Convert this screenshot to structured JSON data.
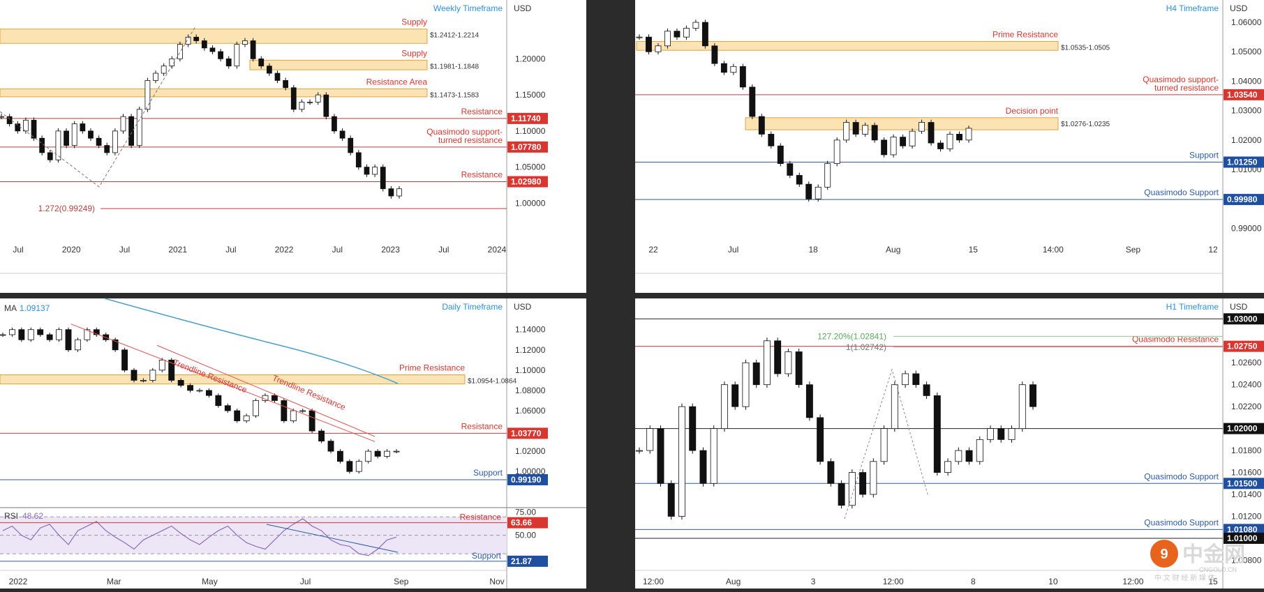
{
  "watermark": {
    "logo_text": "中金网",
    "sub_text": "CNGOLD.CN",
    "tagline": "中 文 财 经 新 媒 体"
  },
  "chart_data": [
    {
      "id": "weekly",
      "type": "candlestick",
      "timeframe_label": "Weekly Timeframe",
      "currency": "USD",
      "yticks": [
        "1.20000",
        "1.15000",
        "1.10000",
        "1.05000",
        "1.00000"
      ],
      "xticks": [
        "Jul",
        "2020",
        "Jul",
        "2021",
        "Jul",
        "2022",
        "Jul",
        "2023",
        "Jul",
        "2024"
      ],
      "ylim": [
        0.955,
        1.266
      ],
      "zones": [
        {
          "label": "Supply",
          "range_label": "$1.2412-1.2214",
          "top": 1.2412,
          "bottom": 1.2214
        },
        {
          "label": "Supply",
          "range_label": "$1.1981-1.1848",
          "top": 1.1981,
          "bottom": 1.1848
        },
        {
          "label": "Resistance Area",
          "range_label": "$1.1473-1.1583",
          "top": 1.1583,
          "bottom": 1.1473
        }
      ],
      "levels": [
        {
          "label": "Resistance",
          "price": 1.1174,
          "badge": "1.11740"
        },
        {
          "label": "Quasimodo support-\nturned resistance",
          "price": 1.0778,
          "badge": "1.07780"
        },
        {
          "label": "Resistance",
          "price": 1.0298,
          "badge": "1.02980"
        }
      ],
      "fib": {
        "label": "1.272(0.99249)",
        "price": 0.99249
      },
      "path": [
        1.12,
        1.11,
        1.1,
        1.115,
        1.09,
        1.07,
        1.06,
        1.1,
        1.08,
        1.11,
        1.1,
        1.09,
        1.08,
        1.07,
        1.1,
        1.12,
        1.08,
        1.13,
        1.17,
        1.18,
        1.19,
        1.2,
        1.22,
        1.23,
        1.225,
        1.215,
        1.21,
        1.2,
        1.19,
        1.22,
        1.225,
        1.2,
        1.19,
        1.18,
        1.17,
        1.16,
        1.13,
        1.14,
        1.14,
        1.15,
        1.12,
        1.1,
        1.09,
        1.07,
        1.05,
        1.04,
        1.05,
        1.02,
        1.01,
        1.02
      ]
    },
    {
      "id": "h4",
      "type": "candlestick",
      "timeframe_label": "H4 Timeframe",
      "currency": "USD",
      "yticks": [
        "1.06000",
        "1.05000",
        "1.04000",
        "1.03000",
        "1.02000",
        "1.01000",
        "1.00000",
        "0.99000"
      ],
      "xticks": [
        "22",
        "Jul",
        "18",
        "Aug",
        "15",
        "14:00",
        "Sep",
        "12"
      ],
      "ylim": [
        0.9875,
        1.0638
      ],
      "zones": [
        {
          "label": "Prime Resistance",
          "range_label": "$1.0535-1.0505",
          "top": 1.0535,
          "bottom": 1.0505
        },
        {
          "label": "Decision point",
          "range_label": "$1.0276-1.0235",
          "top": 1.0276,
          "bottom": 1.0235
        }
      ],
      "levels": [
        {
          "label": "Quasimodo support-\nturned resistance",
          "price": 1.0354,
          "badge": "1.03540"
        },
        {
          "label": "Support",
          "price": 1.0125,
          "badge": "1.01250"
        },
        {
          "label": "Quasimodo Support",
          "price": 0.9998,
          "badge": "0.99980"
        }
      ],
      "path": [
        1.055,
        1.05,
        1.052,
        1.057,
        1.055,
        1.058,
        1.06,
        1.052,
        1.046,
        1.043,
        1.045,
        1.038,
        1.028,
        1.022,
        1.018,
        1.012,
        1.008,
        1.005,
        1.0,
        1.004,
        1.012,
        1.02,
        1.026,
        1.022,
        1.025,
        1.02,
        1.015,
        1.021,
        1.018,
        1.023,
        1.026,
        1.019,
        1.017,
        1.022,
        1.02,
        1.024
      ]
    },
    {
      "id": "daily",
      "type": "candlestick",
      "timeframe_label": "Daily Timeframe",
      "currency": "USD",
      "ma_label": "MA",
      "ma_value": "1.09137",
      "yticks": [
        "1.14000",
        "1.12000",
        "1.10000",
        "1.08000",
        "1.06000",
        "1.04000",
        "1.02000",
        "1.00000"
      ],
      "xticks": [
        "2022",
        "Mar",
        "May",
        "Jul",
        "Sep",
        "Nov"
      ],
      "ylim": [
        0.985,
        1.157
      ],
      "zones": [
        {
          "label": "Prime Resistance",
          "range_label": "$1.0954-1.0864",
          "top": 1.0954,
          "bottom": 1.0864
        }
      ],
      "levels": [
        {
          "label": "Resistance",
          "price": 1.0377,
          "badge": "1.03770"
        },
        {
          "label": "Support",
          "price": 0.9919,
          "badge": "0.99190"
        }
      ],
      "trendlines": [
        {
          "label": "Trendline Resistance",
          "from": [
            0.14,
            1.1455
          ],
          "to": [
            0.74,
            1.0295
          ]
        },
        {
          "label": "Trendline Resistance",
          "from": [
            0.31,
            1.1245
          ],
          "to": [
            0.74,
            1.0345
          ]
        }
      ],
      "path": [
        1.135,
        1.14,
        1.13,
        1.14,
        1.135,
        1.13,
        1.14,
        1.12,
        1.13,
        1.14,
        1.135,
        1.13,
        1.12,
        1.1,
        1.09,
        1.09,
        1.1,
        1.11,
        1.09,
        1.085,
        1.08,
        1.08,
        1.075,
        1.065,
        1.06,
        1.05,
        1.055,
        1.07,
        1.075,
        1.07,
        1.05,
        1.06,
        1.06,
        1.04,
        1.03,
        1.02,
        1.01,
        1.0,
        1.01,
        1.02,
        1.015,
        1.02,
        1.02
      ]
    },
    {
      "id": "rsi",
      "type": "line",
      "label": "RSI",
      "value": "48.62",
      "ylim": [
        18,
        80
      ],
      "yticks": [
        "75.00",
        "50.00"
      ],
      "badges": [
        "63.66",
        "21.87"
      ],
      "levels": [
        {
          "label": "Resistance",
          "value": 63.66
        },
        {
          "label": "Support",
          "value": 21.87
        }
      ],
      "values": [
        55,
        60,
        50,
        45,
        58,
        62,
        50,
        40,
        55,
        60,
        65,
        55,
        48,
        42,
        35,
        45,
        50,
        55,
        60,
        52,
        45,
        40,
        48,
        55,
        60,
        50,
        42,
        38,
        35,
        45,
        55,
        62,
        68,
        60,
        55,
        45,
        40,
        38,
        30,
        28,
        35,
        45,
        48
      ]
    },
    {
      "id": "h1",
      "type": "candlestick",
      "timeframe_label": "H1 Timeframe",
      "currency": "USD",
      "yticks": [
        "1.02600",
        "1.02400",
        "1.02200",
        "1.01800",
        "1.01600",
        "1.01400",
        "1.01200",
        "1.00800"
      ],
      "xticks": [
        "12:00",
        "Aug",
        "3",
        "12:00",
        "8",
        "10",
        "12:00",
        "15"
      ],
      "ylim": [
        1.0072,
        1.0311
      ],
      "levels": [
        {
          "label": "",
          "price": 1.03,
          "badge": "1.03000"
        },
        {
          "label": "Quasimodo Resistance",
          "price": 1.0275,
          "badge": "1.02750"
        },
        {
          "label": "",
          "price": 1.02,
          "badge": "1.02000"
        },
        {
          "label": "Quasimodo Support",
          "price": 1.015,
          "badge": "1.01500"
        },
        {
          "label": "Quasimodo Support",
          "price": 1.0108,
          "badge": "1.01080"
        },
        {
          "label": "",
          "price": 1.01,
          "badge": "1.01000"
        }
      ],
      "fib_labels": [
        {
          "label": "127.20%(1.02841)",
          "price": 1.02841
        },
        {
          "label": "1(1.02742)",
          "price": 1.02742
        }
      ],
      "path": [
        1.018,
        1.02,
        1.015,
        1.012,
        1.022,
        1.018,
        1.015,
        1.02,
        1.024,
        1.022,
        1.026,
        1.024,
        1.028,
        1.025,
        1.027,
        1.024,
        1.021,
        1.017,
        1.015,
        1.013,
        1.016,
        1.014,
        1.017,
        1.02,
        1.024,
        1.025,
        1.024,
        1.023,
        1.016,
        1.017,
        1.018,
        1.017,
        1.019,
        1.02,
        1.019,
        1.02,
        1.024,
        1.022
      ]
    }
  ]
}
